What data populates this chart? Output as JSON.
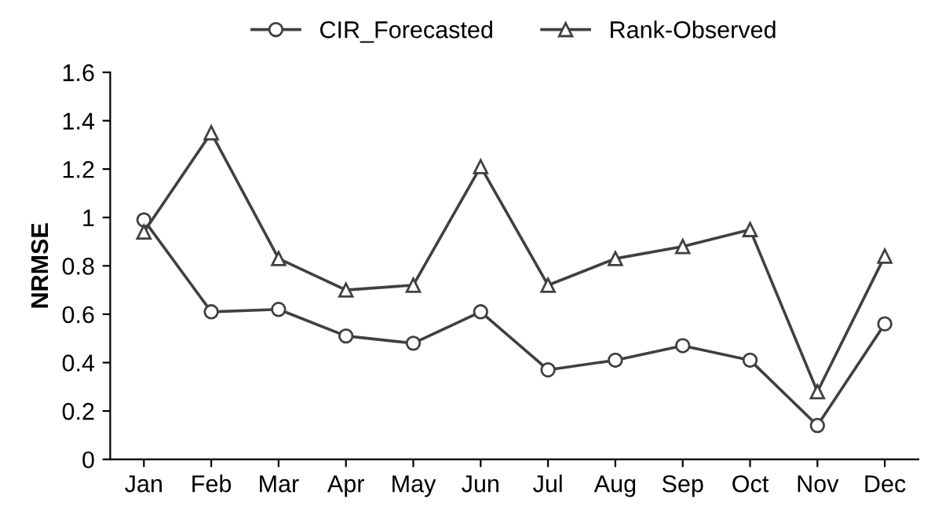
{
  "chart_data": {
    "type": "line",
    "ylabel": "NRMSE",
    "categories": [
      "Jan",
      "Feb",
      "Mar",
      "Apr",
      "May",
      "Jun",
      "Jul",
      "Aug",
      "Sep",
      "Oct",
      "Nov",
      "Dec"
    ],
    "series": [
      {
        "name": "CIR_Forecasted",
        "color": "#404040",
        "marker": "circle",
        "values": [
          0.99,
          0.61,
          0.62,
          0.51,
          0.48,
          0.61,
          0.37,
          0.41,
          0.47,
          0.41,
          0.14,
          0.56
        ]
      },
      {
        "name": "Rank-Observed",
        "color": "#404040",
        "marker": "triangle",
        "values": [
          0.94,
          1.35,
          0.83,
          0.7,
          0.72,
          1.21,
          0.72,
          0.83,
          0.88,
          0.95,
          0.28,
          0.84
        ]
      }
    ],
    "ylim": [
      0,
      1.6
    ],
    "yticks": [
      0,
      0.2,
      0.4,
      0.6,
      0.8,
      1,
      1.2,
      1.4,
      1.6
    ],
    "grid": false,
    "legend": "top",
    "line_style": "solid"
  }
}
